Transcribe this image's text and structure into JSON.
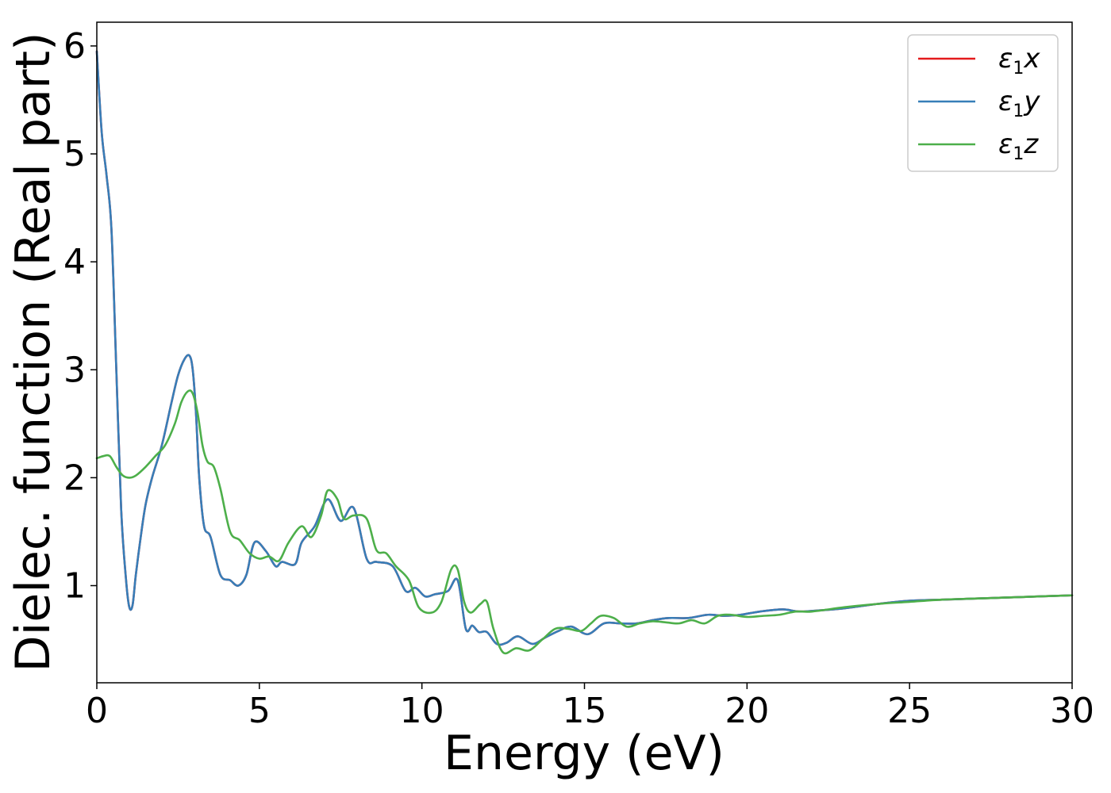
{
  "chart_data": {
    "type": "line",
    "xlabel": "Energy (eV)",
    "ylabel": "Dielec. function (Real part)",
    "xlim": [
      0,
      30
    ],
    "ylim": [
      0.1,
      6.22
    ],
    "xticks": [
      0,
      5,
      10,
      15,
      20,
      25,
      30
    ],
    "xtick_labels": [
      "0",
      "5",
      "10",
      "15",
      "20",
      "25",
      "30"
    ],
    "yticks": [
      1,
      2,
      3,
      4,
      5,
      6
    ],
    "ytick_labels": [
      "1",
      "2",
      "3",
      "4",
      "5",
      "6"
    ],
    "grid": false,
    "legend_position": "top-right",
    "colors": {
      "x": "#e41a1c",
      "y": "#377eb8",
      "z": "#4daf4a"
    },
    "series": [
      {
        "name": "ε1x",
        "base": "ε",
        "sub": "1",
        "axis": "x",
        "color": "#e41a1c",
        "x": [
          0,
          0.15,
          0.3,
          0.45,
          0.6,
          0.75,
          0.9,
          1.0,
          1.1,
          1.2,
          1.35,
          1.5,
          1.7,
          2.0,
          2.3,
          2.5,
          2.7,
          2.85,
          2.95,
          3.05,
          3.15,
          3.3,
          3.5,
          3.8,
          4.1,
          4.35,
          4.6,
          4.85,
          5.2,
          5.5,
          5.7,
          6.1,
          6.3,
          6.7,
          7.1,
          7.5,
          7.9,
          8.3,
          8.6,
          9.1,
          9.5,
          9.8,
          10.1,
          10.4,
          10.8,
          11.1,
          11.35,
          11.55,
          11.75,
          12.0,
          12.3,
          12.6,
          12.95,
          13.4,
          13.8,
          14.2,
          14.6,
          15.1,
          15.6,
          16.1,
          16.6,
          17.1,
          17.6,
          18.2,
          18.8,
          19.3,
          19.8,
          20.4,
          21.1,
          21.6,
          22.2,
          23.0,
          24.0,
          25.0,
          26.0,
          27.0,
          28.0,
          29.0,
          30.0
        ],
        "values": [
          5.95,
          5.2,
          4.8,
          4.3,
          3.0,
          1.7,
          1.05,
          0.8,
          0.82,
          1.1,
          1.45,
          1.75,
          2.0,
          2.3,
          2.7,
          2.95,
          3.1,
          3.13,
          3.0,
          2.6,
          2.0,
          1.55,
          1.45,
          1.1,
          1.05,
          1.0,
          1.1,
          1.4,
          1.32,
          1.18,
          1.22,
          1.2,
          1.4,
          1.55,
          1.8,
          1.6,
          1.72,
          1.25,
          1.22,
          1.18,
          0.95,
          0.98,
          0.9,
          0.92,
          0.95,
          1.05,
          0.6,
          0.63,
          0.57,
          0.57,
          0.46,
          0.47,
          0.53,
          0.46,
          0.52,
          0.58,
          0.62,
          0.55,
          0.65,
          0.65,
          0.65,
          0.68,
          0.7,
          0.7,
          0.73,
          0.72,
          0.73,
          0.76,
          0.78,
          0.76,
          0.77,
          0.79,
          0.83,
          0.86,
          0.87,
          0.88,
          0.89,
          0.9,
          0.91
        ]
      },
      {
        "name": "ε1y",
        "base": "ε",
        "sub": "1",
        "axis": "y",
        "color": "#377eb8",
        "x": [
          0,
          0.15,
          0.3,
          0.45,
          0.6,
          0.75,
          0.9,
          1.0,
          1.1,
          1.2,
          1.35,
          1.5,
          1.7,
          2.0,
          2.3,
          2.5,
          2.7,
          2.85,
          2.95,
          3.05,
          3.15,
          3.3,
          3.5,
          3.8,
          4.1,
          4.35,
          4.6,
          4.85,
          5.2,
          5.5,
          5.7,
          6.1,
          6.3,
          6.7,
          7.1,
          7.5,
          7.9,
          8.3,
          8.6,
          9.1,
          9.5,
          9.8,
          10.1,
          10.4,
          10.8,
          11.1,
          11.35,
          11.55,
          11.75,
          12.0,
          12.3,
          12.6,
          12.95,
          13.4,
          13.8,
          14.2,
          14.6,
          15.1,
          15.6,
          16.1,
          16.6,
          17.1,
          17.6,
          18.2,
          18.8,
          19.3,
          19.8,
          20.4,
          21.1,
          21.6,
          22.2,
          23.0,
          24.0,
          25.0,
          26.0,
          27.0,
          28.0,
          29.0,
          30.0
        ],
        "values": [
          5.95,
          5.2,
          4.8,
          4.3,
          3.0,
          1.7,
          1.05,
          0.8,
          0.82,
          1.1,
          1.45,
          1.75,
          2.0,
          2.3,
          2.7,
          2.95,
          3.1,
          3.13,
          3.0,
          2.6,
          2.0,
          1.55,
          1.45,
          1.1,
          1.05,
          1.0,
          1.1,
          1.4,
          1.32,
          1.18,
          1.22,
          1.2,
          1.4,
          1.55,
          1.8,
          1.6,
          1.72,
          1.25,
          1.22,
          1.18,
          0.95,
          0.98,
          0.9,
          0.92,
          0.95,
          1.05,
          0.6,
          0.63,
          0.57,
          0.57,
          0.46,
          0.47,
          0.53,
          0.46,
          0.52,
          0.58,
          0.62,
          0.55,
          0.65,
          0.65,
          0.65,
          0.68,
          0.7,
          0.7,
          0.73,
          0.72,
          0.73,
          0.76,
          0.78,
          0.76,
          0.77,
          0.79,
          0.83,
          0.86,
          0.87,
          0.88,
          0.89,
          0.9,
          0.91
        ]
      },
      {
        "name": "ε1z",
        "base": "ε",
        "sub": "1",
        "axis": "z",
        "color": "#4daf4a",
        "x": [
          0,
          0.2,
          0.4,
          0.6,
          0.8,
          1.0,
          1.2,
          1.5,
          1.8,
          2.1,
          2.4,
          2.6,
          2.8,
          2.95,
          3.1,
          3.25,
          3.4,
          3.6,
          3.8,
          4.1,
          4.4,
          4.7,
          5.0,
          5.3,
          5.6,
          5.9,
          6.3,
          6.6,
          6.9,
          7.1,
          7.4,
          7.6,
          7.9,
          8.3,
          8.6,
          8.9,
          9.2,
          9.6,
          9.9,
          10.3,
          10.6,
          10.9,
          11.1,
          11.3,
          11.5,
          11.8,
          12.0,
          12.2,
          12.5,
          12.9,
          13.3,
          13.7,
          14.1,
          14.5,
          14.9,
          15.2,
          15.5,
          15.9,
          16.3,
          16.7,
          17.1,
          17.5,
          17.9,
          18.3,
          18.7,
          19.1,
          19.5,
          20.0,
          20.5,
          21.0,
          21.5,
          22.0,
          23.0,
          24.0,
          25.0,
          26.0,
          27.0,
          28.0,
          29.0,
          30.0
        ],
        "values": [
          2.18,
          2.2,
          2.2,
          2.1,
          2.02,
          2.0,
          2.02,
          2.1,
          2.2,
          2.3,
          2.5,
          2.7,
          2.8,
          2.78,
          2.6,
          2.3,
          2.15,
          2.1,
          1.9,
          1.5,
          1.42,
          1.3,
          1.25,
          1.27,
          1.23,
          1.4,
          1.55,
          1.45,
          1.65,
          1.88,
          1.8,
          1.62,
          1.65,
          1.62,
          1.33,
          1.3,
          1.18,
          1.05,
          0.8,
          0.75,
          0.85,
          1.15,
          1.15,
          0.85,
          0.75,
          0.83,
          0.85,
          0.6,
          0.38,
          0.42,
          0.4,
          0.5,
          0.6,
          0.6,
          0.58,
          0.65,
          0.72,
          0.7,
          0.62,
          0.65,
          0.67,
          0.66,
          0.65,
          0.68,
          0.65,
          0.72,
          0.73,
          0.71,
          0.72,
          0.73,
          0.76,
          0.76,
          0.8,
          0.83,
          0.85,
          0.87,
          0.88,
          0.89,
          0.9,
          0.91
        ]
      }
    ]
  }
}
